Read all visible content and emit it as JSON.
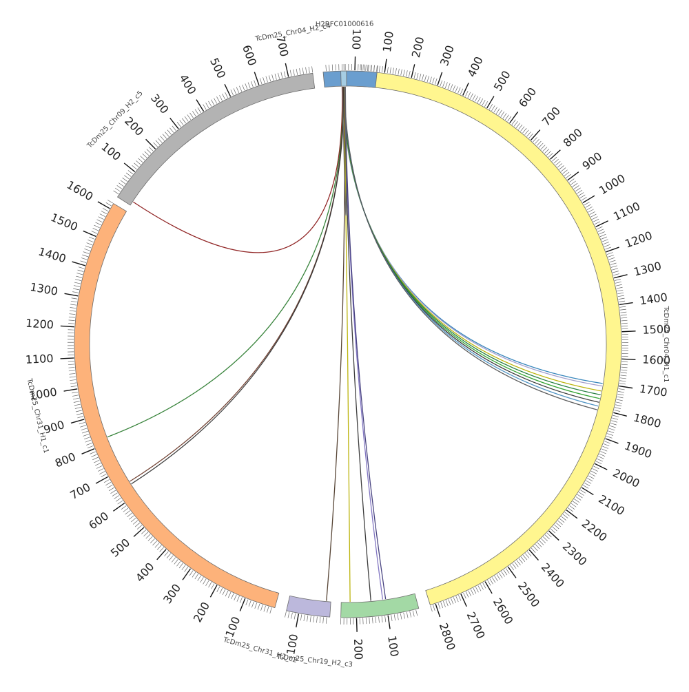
{
  "chart_data": {
    "type": "circos",
    "title": "",
    "segments": [
      {
        "id": "tcdm25-chr04-h1-c1",
        "name": "TcDm25_Chr04_H1_c1",
        "length": 2820,
        "color": "#FFF68F",
        "tick_labels": [
          "100",
          "200",
          "300",
          "400",
          "500",
          "600",
          "700",
          "800",
          "900",
          "1000",
          "1100",
          "1200",
          "1300",
          "1400",
          "1500",
          "1600",
          "1700",
          "1800",
          "1900",
          "2000",
          "2100",
          "2200",
          "2300",
          "2400",
          "2500",
          "2600",
          "2700",
          "2800"
        ]
      },
      {
        "id": "tcdm25-chr19-h2-c3",
        "name": "TcDm25_Chr19_H2_c3",
        "length": 250,
        "color": "#A3D9A5",
        "tick_labels": [
          "100",
          "200"
        ]
      },
      {
        "id": "tcdm25-chr31-h2-c2",
        "name": "TcDm25_Chr31_H2_c2",
        "length": 140,
        "color": "#BCB8DC",
        "tick_labels": [
          "100"
        ]
      },
      {
        "id": "tcdm25-chr31-h1-c1",
        "name": "TcDm25_Chr31_H1_c1",
        "length": 1620,
        "color": "#FDB27A",
        "tick_labels": [
          "100",
          "200",
          "300",
          "400",
          "500",
          "600",
          "700",
          "800",
          "900",
          "1000",
          "1100",
          "1200",
          "1300",
          "1400",
          "1500",
          "1600"
        ]
      },
      {
        "id": "tcdm25-chr09-h2-c5",
        "name": "TcDm25_Chr09_H2_c5",
        "length": 780,
        "color": "#B3B3B3",
        "tick_labels": [
          "100",
          "200",
          "300",
          "400",
          "500",
          "600",
          "700"
        ]
      },
      {
        "id": "tcdm25-chr04-h2-c4",
        "name": "TcDm25_Chr04_H2_c4",
        "length": 170,
        "color": "#6A9ECF",
        "tick_labels": [
          "100"
        ]
      },
      {
        "id": "h2rfc01000616",
        "name": "H2RFC01000616",
        "length": 18,
        "color": "#A6CDE3",
        "tick_labels": []
      }
    ],
    "links": [
      {
        "from": "h2rfc01000616",
        "from_pos": 4,
        "to": "tcdm25-chr04-h1-c1",
        "to_pos": 1700,
        "color": "#2C7FB8"
      },
      {
        "from": "h2rfc01000616",
        "from_pos": 5,
        "to": "tcdm25-chr04-h1-c1",
        "to_pos": 1710,
        "color": "#9E9AC8"
      },
      {
        "from": "h2rfc01000616",
        "from_pos": 6,
        "to": "tcdm25-chr04-h1-c1",
        "to_pos": 1730,
        "color": "#B8B000"
      },
      {
        "from": "h2rfc01000616",
        "from_pos": 7,
        "to": "tcdm25-chr04-h1-c1",
        "to_pos": 1745,
        "color": "#1B7837"
      },
      {
        "from": "h2rfc01000616",
        "from_pos": 8,
        "to": "tcdm25-chr04-h1-c1",
        "to_pos": 1760,
        "color": "#2CA02C"
      },
      {
        "from": "h2rfc01000616",
        "from_pos": 9,
        "to": "tcdm25-chr04-h1-c1",
        "to_pos": 1775,
        "color": "#333333"
      },
      {
        "from": "h2rfc01000616",
        "from_pos": 10,
        "to": "tcdm25-chr04-h1-c1",
        "to_pos": 1790,
        "color": "#4A90C2"
      },
      {
        "from": "h2rfc01000616",
        "from_pos": 11,
        "to": "tcdm25-chr04-h1-c1",
        "to_pos": 1805,
        "color": "#555555"
      },
      {
        "from": "h2rfc01000616",
        "from_pos": 3,
        "to": "tcdm25-chr09-h2-c5",
        "to_pos": 15,
        "color": "#8B1A1A"
      },
      {
        "from": "h2rfc01000616",
        "from_pos": 6,
        "to": "tcdm25-chr31-h1-c1",
        "to_pos": 820,
        "color": "#2E7D32"
      },
      {
        "from": "h2rfc01000616",
        "from_pos": 7,
        "to": "tcdm25-chr31-h1-c1",
        "to_pos": 650,
        "color": "#6B3A2A"
      },
      {
        "from": "h2rfc01000616",
        "from_pos": 8,
        "to": "tcdm25-chr31-h1-c1",
        "to_pos": 640,
        "color": "#333333"
      },
      {
        "from": "h2rfc01000616",
        "from_pos": 9,
        "to": "tcdm25-chr31-h2-c2",
        "to_pos": 15,
        "color": "#4E3B2B"
      },
      {
        "from": "h2rfc01000616",
        "from_pos": 10,
        "to": "tcdm25-chr19-h2-c3",
        "to_pos": 220,
        "color": "#B8B000"
      },
      {
        "from": "h2rfc01000616",
        "from_pos": 11,
        "to": "tcdm25-chr19-h2-c3",
        "to_pos": 150,
        "color": "#333333"
      },
      {
        "from": "h2rfc01000616",
        "from_pos": 12,
        "to": "tcdm25-chr19-h2-c3",
        "to_pos": 110,
        "color": "#7B6FBF"
      },
      {
        "from": "h2rfc01000616",
        "from_pos": 13,
        "to": "tcdm25-chr19-h2-c3",
        "to_pos": 100,
        "color": "#3F3A7A"
      },
      {
        "from": "h2rfc01000616",
        "from_pos": 14,
        "to": "tcdm25-chr04-h2-c4",
        "to_pos": 60,
        "color": "#666666"
      }
    ]
  }
}
